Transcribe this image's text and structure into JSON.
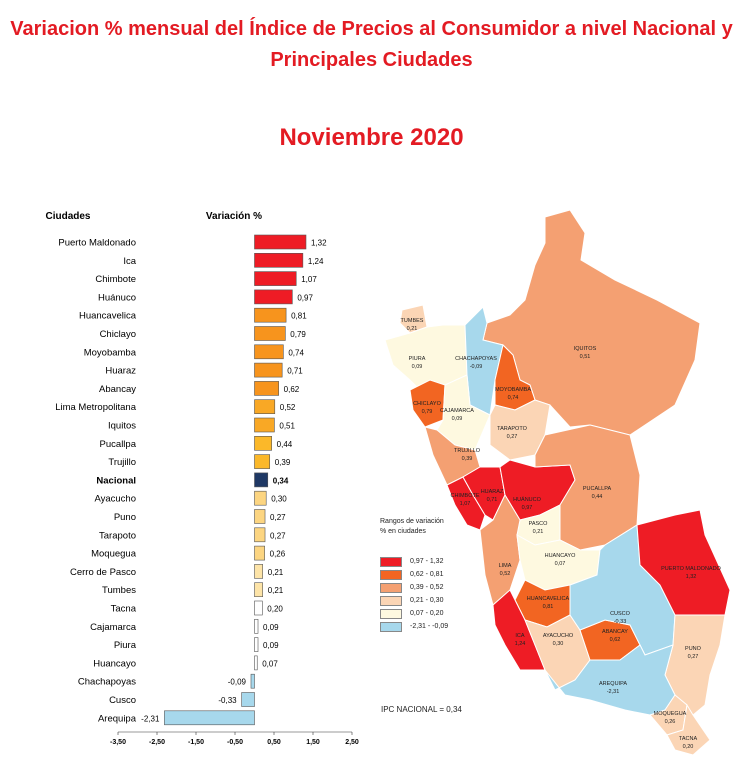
{
  "header": {
    "title_line1": "Variacion % mensual del Índice de Precios al Consumidor a nivel Nacional y",
    "title_line2": "Principales Ciudades",
    "period": "Noviembre 2020"
  },
  "chart_data": {
    "type": "bar",
    "orientation": "horizontal",
    "category_header": "Ciudades",
    "value_header": "Variación %",
    "xlim": [
      -3.5,
      2.5
    ],
    "x_ticks": [
      "-3,50",
      "-2,50",
      "-1,50",
      "-0,50",
      "0,50",
      "1,50",
      "2,50"
    ],
    "categories": [
      "Puerto Maldonado",
      "Ica",
      "Chimbote",
      "Huánuco",
      "Huancavelica",
      "Chiclayo",
      "Moyobamba",
      "Huaraz",
      "Abancay",
      "Lima Metropolitana",
      "Iquitos",
      "Pucallpa",
      "Trujillo",
      "Nacional",
      "Ayacucho",
      "Puno",
      "Tarapoto",
      "Moquegua",
      "Cerro de Pasco",
      "Tumbes",
      "Tacna",
      "Cajamarca",
      "Piura",
      "Huancayo",
      "Chachapoyas",
      "Cusco",
      "Arequipa"
    ],
    "values": [
      1.32,
      1.24,
      1.07,
      0.97,
      0.81,
      0.79,
      0.74,
      0.71,
      0.62,
      0.52,
      0.51,
      0.44,
      0.39,
      0.34,
      0.3,
      0.27,
      0.27,
      0.26,
      0.21,
      0.21,
      0.2,
      0.09,
      0.09,
      0.07,
      -0.09,
      -0.33,
      -2.31
    ],
    "value_labels": [
      "1,32",
      "1,24",
      "1,07",
      "0,97",
      "0,81",
      "0,79",
      "0,74",
      "0,71",
      "0,62",
      "0,52",
      "0,51",
      "0,44",
      "0,39",
      "0,34",
      "0,30",
      "0,27",
      "0,27",
      "0,26",
      "0,21",
      "0,21",
      "0,20",
      "0,09",
      "0,09",
      "0,07",
      "-0,09",
      "-0,33",
      "-2,31"
    ],
    "bar_colors": [
      "#ee1c25",
      "#ee1c25",
      "#ee1c25",
      "#ee1c25",
      "#f7941d",
      "#f7941d",
      "#f7941d",
      "#f7941d",
      "#f7941d",
      "#f9a825",
      "#f9a825",
      "#fbb829",
      "#fbb829",
      "#1f3864",
      "#fcd581",
      "#fcd581",
      "#fcd581",
      "#fcd581",
      "#fde4a8",
      "#fde4a8",
      "#ffffff",
      "#ffffff",
      "#ffffff",
      "#ffffff",
      "#a7d8ec",
      "#a7d8ec",
      "#a7d8ec"
    ]
  },
  "map": {
    "legend_title_line1": "Rangos de variación",
    "legend_title_line2": "% en ciudades",
    "legend": [
      {
        "label": "0,97  -  1,32",
        "color": "#ee1c25"
      },
      {
        "label": "0,62  -  0,81",
        "color": "#f26522"
      },
      {
        "label": "0,39  -  0,52",
        "color": "#f4a072"
      },
      {
        "label": "0,21  -  0,30",
        "color": "#fbd5b5"
      },
      {
        "label": "0,07  -  0,20",
        "color": "#fef9e0"
      },
      {
        "label": "-2,31  -  -0,09",
        "color": "#a7d8ec"
      }
    ],
    "ipc_nacional": "IPC NACIONAL = 0,34",
    "regions": [
      {
        "name": "TUMBES",
        "value": "0,21"
      },
      {
        "name": "PIURA",
        "value": "0,09"
      },
      {
        "name": "CHACHAPOYAS",
        "value": "-0,09"
      },
      {
        "name": "IQUITOS",
        "value": "0,51"
      },
      {
        "name": "MOYOBAMBA",
        "value": "0,74"
      },
      {
        "name": "CHICLAYO",
        "value": "0,79"
      },
      {
        "name": "CAJAMARCA",
        "value": "0,09"
      },
      {
        "name": "TARAPOTO",
        "value": "0,27"
      },
      {
        "name": "TRUJILLO",
        "value": "0,39"
      },
      {
        "name": "CHIMBOTE",
        "value": "1,07"
      },
      {
        "name": "HUARAZ",
        "value": "0,71"
      },
      {
        "name": "HUÁNUCO",
        "value": "0,97"
      },
      {
        "name": "PUCALLPA",
        "value": "0,44"
      },
      {
        "name": "PASCO",
        "value": "0,21"
      },
      {
        "name": "HUANCAYO",
        "value": "0,07"
      },
      {
        "name": "LIMA",
        "value": "0,52"
      },
      {
        "name": "PUERTO MALDONADO",
        "value": "1,32"
      },
      {
        "name": "HUANCAVELICA",
        "value": "0,81"
      },
      {
        "name": "CUSCO",
        "value": "-0,33"
      },
      {
        "name": "ICA",
        "value": "1,24"
      },
      {
        "name": "AYACUCHO",
        "value": "0,30"
      },
      {
        "name": "ABANCAY",
        "value": "0,62"
      },
      {
        "name": "PUNO",
        "value": "0,27"
      },
      {
        "name": "AREQUIPA",
        "value": "-2,31"
      },
      {
        "name": "MOQUEGUA",
        "value": "0,26"
      },
      {
        "name": "TACNA",
        "value": "0,20"
      }
    ]
  }
}
